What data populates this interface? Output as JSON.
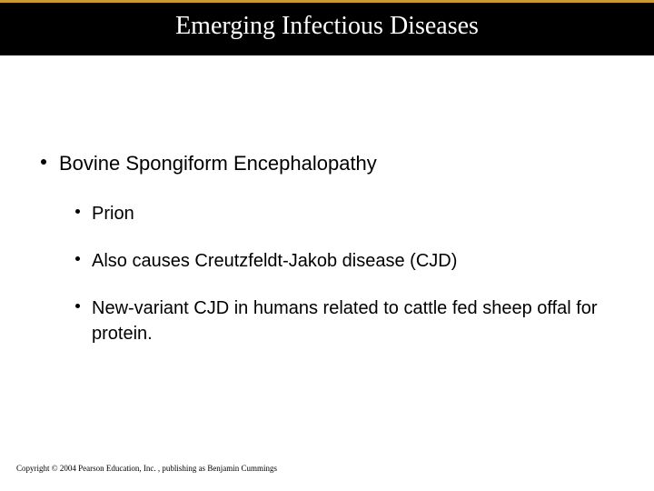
{
  "title": {
    "text": "Emerging Infectious Diseases",
    "fontsize": 28,
    "color": "#ffffff",
    "background": "#000000",
    "rule_color": "#cc9933",
    "rule_height": 3
  },
  "body": {
    "text_color": "#000000",
    "bullet_color": "#000000",
    "l1_fontsize": 22,
    "l2_fontsize": 20,
    "items": [
      {
        "level": 1,
        "text": "Bovine Spongiform Encephalopathy"
      },
      {
        "level": 2,
        "text": "Prion"
      },
      {
        "level": 2,
        "text": "Also causes Creutzfeldt-Jakob disease (CJD)"
      },
      {
        "level": 2,
        "text": "New-variant CJD in humans related to cattle fed sheep offal for protein."
      }
    ]
  },
  "copyright": {
    "text": "Copyright © 2004 Pearson Education, Inc. , publishing as Benjamin Cummings",
    "fontsize": 9,
    "color": "#000000"
  },
  "background_color": "#ffffff"
}
